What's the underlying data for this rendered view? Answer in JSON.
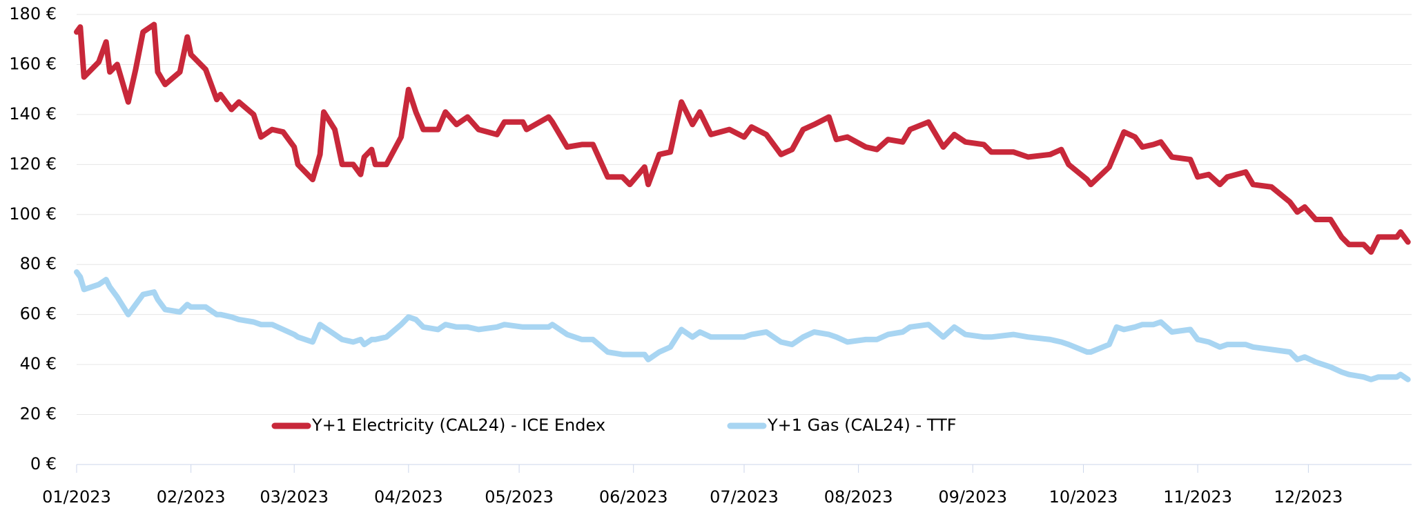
{
  "chart_data": {
    "type": "line",
    "x": [
      0,
      1,
      2,
      6,
      8,
      9,
      11,
      14,
      16,
      18,
      21,
      22,
      24,
      28,
      30,
      31,
      35,
      38,
      39,
      42,
      44,
      48,
      50,
      53,
      56,
      59,
      60,
      64,
      66,
      67,
      70,
      72,
      75,
      77,
      78,
      80,
      81,
      84,
      88,
      90,
      92,
      94,
      98,
      100,
      103,
      106,
      109,
      114,
      116,
      121,
      122,
      128,
      129,
      133,
      137,
      140,
      144,
      148,
      150,
      154,
      155,
      158,
      161,
      164,
      167,
      169,
      172,
      177,
      181,
      183,
      187,
      191,
      194,
      197,
      200,
      204,
      206,
      209,
      214,
      217,
      220,
      224,
      226,
      231,
      235,
      238,
      241,
      246,
      248,
      254,
      258,
      264,
      267,
      269,
      274,
      275,
      280,
      282,
      284,
      287,
      289,
      292,
      294,
      297,
      302,
      304,
      307,
      310,
      312,
      317,
      319,
      324,
      329,
      331,
      333,
      336,
      340,
      343,
      345,
      349,
      351,
      353,
      358,
      359,
      361
    ],
    "series": [
      {
        "name": "Y+1 Electricity (CAL24) - ICE Endex",
        "color": "#c8283a",
        "values": [
          173,
          175,
          155,
          161,
          169,
          157,
          160,
          145,
          158,
          173,
          176,
          157,
          152,
          157,
          171,
          164,
          158,
          146,
          148,
          142,
          145,
          140,
          131,
          134,
          133,
          127,
          120,
          114,
          124,
          141,
          134,
          120,
          120,
          116,
          123,
          126,
          120,
          120,
          131,
          150,
          141,
          134,
          134,
          141,
          136,
          139,
          134,
          132,
          137,
          137,
          134,
          139,
          137,
          127,
          128,
          128,
          115,
          115,
          112,
          119,
          112,
          124,
          125,
          145,
          136,
          141,
          132,
          134,
          131,
          135,
          132,
          124,
          126,
          134,
          136,
          139,
          130,
          131,
          127,
          126,
          130,
          129,
          134,
          137,
          127,
          132,
          129,
          128,
          125,
          125,
          123,
          124,
          126,
          120,
          114,
          112,
          119,
          126,
          133,
          131,
          127,
          128,
          129,
          123,
          122,
          115,
          116,
          112,
          115,
          117,
          112,
          111,
          105,
          101,
          103,
          98,
          98,
          91,
          88,
          88,
          85,
          91,
          91,
          93,
          89
        ]
      },
      {
        "name": "Y+1 Gas (CAL24) - TTF",
        "color": "#a8d5f2",
        "values": [
          77,
          75,
          70,
          72,
          74,
          71,
          67,
          60,
          64,
          68,
          69,
          66,
          62,
          61,
          64,
          63,
          63,
          60,
          60,
          59,
          58,
          57,
          56,
          56,
          54,
          52,
          51,
          49,
          56,
          55,
          52,
          50,
          49,
          50,
          48,
          50,
          50,
          51,
          56,
          59,
          58,
          55,
          54,
          56,
          55,
          55,
          54,
          55,
          56,
          55,
          55,
          55,
          56,
          52,
          50,
          50,
          45,
          44,
          44,
          44,
          42,
          45,
          47,
          54,
          51,
          53,
          51,
          51,
          51,
          52,
          53,
          49,
          48,
          51,
          53,
          52,
          51,
          49,
          50,
          50,
          52,
          53,
          55,
          56,
          51,
          55,
          52,
          51,
          51,
          52,
          51,
          50,
          49,
          48,
          45,
          45,
          48,
          55,
          54,
          55,
          56,
          56,
          57,
          53,
          54,
          50,
          49,
          47,
          48,
          48,
          47,
          46,
          45,
          42,
          43,
          41,
          39,
          37,
          36,
          35,
          34,
          35,
          35,
          36,
          34
        ]
      }
    ],
    "xlim": [
      0,
      362
    ],
    "xticks": [
      {
        "value": 0,
        "label": "01/2023"
      },
      {
        "value": 31,
        "label": "02/2023"
      },
      {
        "value": 59,
        "label": "03/2023"
      },
      {
        "value": 90,
        "label": "04/2023"
      },
      {
        "value": 120,
        "label": "05/2023"
      },
      {
        "value": 151,
        "label": "06/2023"
      },
      {
        "value": 181,
        "label": "07/2023"
      },
      {
        "value": 212,
        "label": "08/2023"
      },
      {
        "value": 243,
        "label": "09/2023"
      },
      {
        "value": 273,
        "label": "10/2023"
      },
      {
        "value": 304,
        "label": "11/2023"
      },
      {
        "value": 334,
        "label": "12/2023"
      }
    ],
    "ylim": [
      0,
      180
    ],
    "yticks": [
      {
        "value": 0,
        "label": "0 €"
      },
      {
        "value": 20,
        "label": "20 €"
      },
      {
        "value": 40,
        "label": "40 €"
      },
      {
        "value": 60,
        "label": "60 €"
      },
      {
        "value": 80,
        "label": "80 €"
      },
      {
        "value": 100,
        "label": "100 €"
      },
      {
        "value": 120,
        "label": "120 €"
      },
      {
        "value": 140,
        "label": "140 €"
      },
      {
        "value": 160,
        "label": "160 €"
      },
      {
        "value": 180,
        "label": "180 €"
      }
    ],
    "grid": true
  }
}
